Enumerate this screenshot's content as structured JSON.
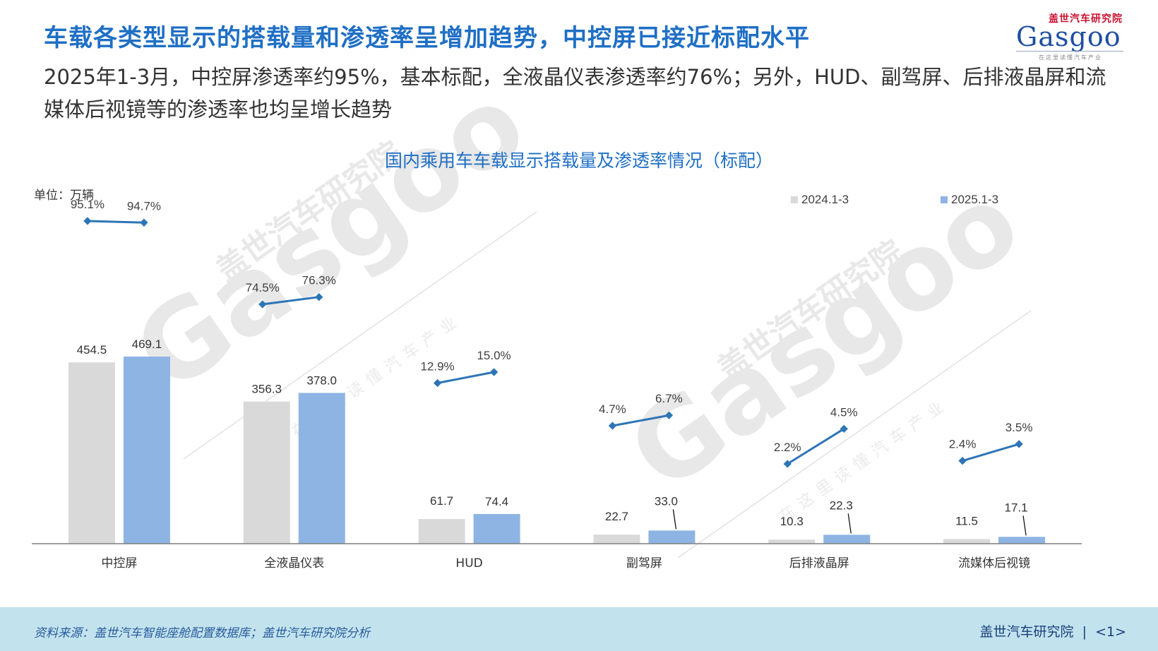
{
  "header": {
    "title": "车载各类型显示的搭载量和渗透率呈增加趋势，中控屏已接近标配水平",
    "subtitle": "2025年1-3月，中控屏渗透率约95%，基本标配，全液晶仪表渗透率约76%；另外，HUD、副驾屏、后排液晶屏和流媒体后视镜等的渗透率也均呈增长趋势"
  },
  "logo": {
    "cn": "盖世汽车研究院",
    "en": "Gasgoo",
    "tagline": "在这里读懂汽车产业"
  },
  "watermark": {
    "cn": "盖世汽车研究院",
    "en": "Gasgoo",
    "tagline": "在这里读懂汽车产业"
  },
  "colors": {
    "accent": "#1f6fc5",
    "bar_2024": "#d9d9d9",
    "bar_2025": "#8eb4e3",
    "line": "#2e75b6",
    "footer_bg": "#c2e3ed"
  },
  "chart_data": {
    "type": "bar",
    "title": "国内乘用车车载显示搭载量及渗透率情况（标配）",
    "unit_label": "单位：万辆",
    "categories": [
      "中控屏",
      "全液晶仪表",
      "HUD",
      "副驾屏",
      "后排液晶屏",
      "流媒体后视镜"
    ],
    "series": [
      {
        "name": "2024.1-3",
        "values": [
          454.5,
          356.3,
          61.7,
          22.7,
          10.3,
          11.5
        ],
        "labels": [
          "454.5",
          "356.3",
          "61.7",
          "22.7",
          "10.3",
          "11.5"
        ]
      },
      {
        "name": "2025.1-3",
        "values": [
          469.1,
          378.0,
          74.4,
          33.0,
          22.3,
          17.1
        ],
        "labels": [
          "469.1",
          "378.0",
          "74.4",
          "33.0",
          "22.3",
          "17.1"
        ]
      }
    ],
    "penetration_rate": {
      "unit": "%",
      "pairs": [
        {
          "category": "中控屏",
          "v2024": 95.1,
          "v2025": 94.7,
          "l2024": "95.1%",
          "l2025": "94.7%"
        },
        {
          "category": "全液晶仪表",
          "v2024": 74.5,
          "v2025": 76.3,
          "l2024": "74.5%",
          "l2025": "76.3%"
        },
        {
          "category": "HUD",
          "v2024": 12.9,
          "v2025": 15.0,
          "l2024": "12.9%",
          "l2025": "15.0%"
        },
        {
          "category": "副驾屏",
          "v2024": 4.7,
          "v2025": 6.7,
          "l2024": "4.7%",
          "l2025": "6.7%"
        },
        {
          "category": "后排液晶屏",
          "v2024": 2.2,
          "v2025": 4.5,
          "l2024": "2.2%",
          "l2025": "4.5%"
        },
        {
          "category": "流媒体后视镜",
          "v2024": 2.4,
          "v2025": 3.5,
          "l2024": "2.4%",
          "l2025": "3.5%"
        }
      ]
    },
    "ylim": [
      0,
      500
    ],
    "legend_position": "top-right",
    "grid": false
  },
  "footer": {
    "source": "资料来源：盖世汽车智能座舱配置数据库；盖世汽车研究院分析",
    "org": "盖世汽车研究院",
    "page": "<1>"
  }
}
